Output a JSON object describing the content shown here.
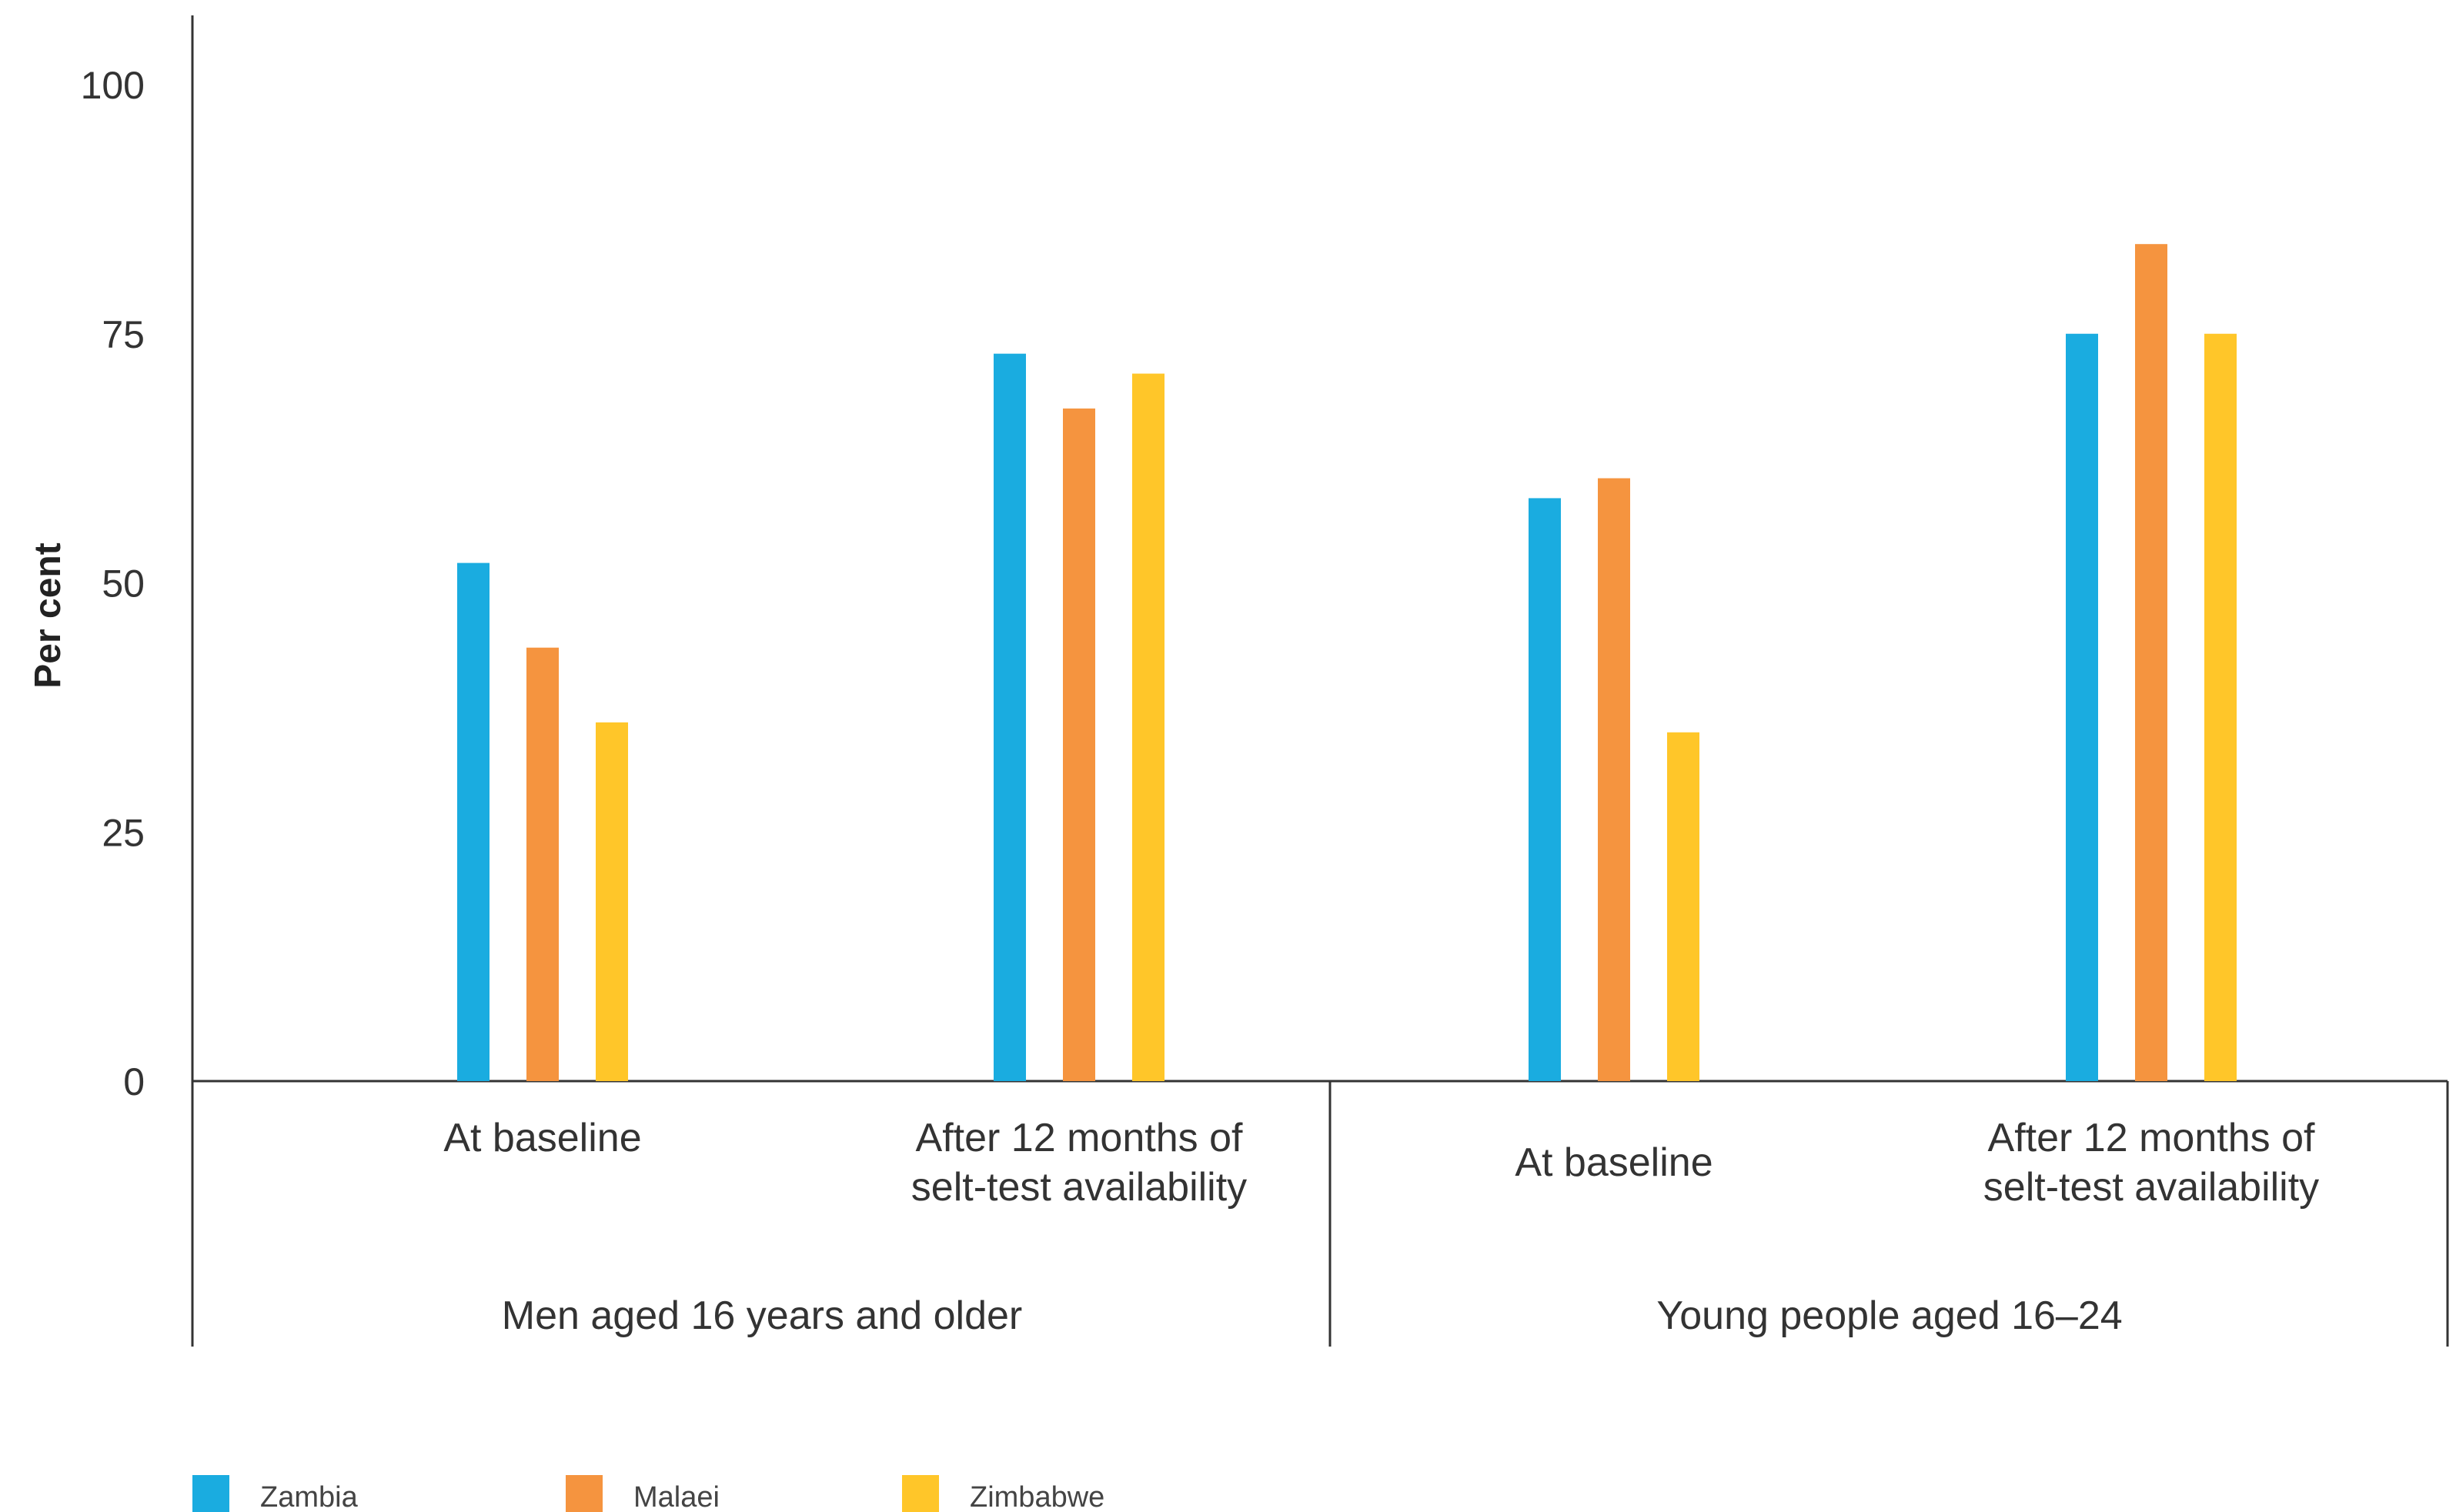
{
  "chart_data": {
    "type": "bar",
    "ylabel": "Per cent",
    "ylim": [
      0,
      100
    ],
    "yticks": [
      0,
      25,
      50,
      75,
      100
    ],
    "groups": [
      {
        "label": "Men aged 16 years and older",
        "categories": [
          {
            "label_lines": [
              "At baseline"
            ],
            "values": [
              52,
              43.5,
              36
            ]
          },
          {
            "label_lines": [
              "After 12 months of",
              "selt-test availability"
            ],
            "values": [
              73,
              67.5,
              71
            ]
          }
        ]
      },
      {
        "label": "Young people aged 16–24",
        "categories": [
          {
            "label_lines": [
              "At baseline"
            ],
            "values": [
              58.5,
              60.5,
              35
            ]
          },
          {
            "label_lines": [
              "After 12 months of",
              "selt-test availability"
            ],
            "values": [
              75,
              84,
              75
            ]
          }
        ]
      }
    ],
    "series": [
      {
        "name": "Zambia",
        "color": "#1aace0"
      },
      {
        "name": "Malaei",
        "color": "#f5943f"
      },
      {
        "name": "Zimbabwe",
        "color": "#ffc629"
      }
    ],
    "grid": false,
    "legend_position": "bottom-left"
  }
}
